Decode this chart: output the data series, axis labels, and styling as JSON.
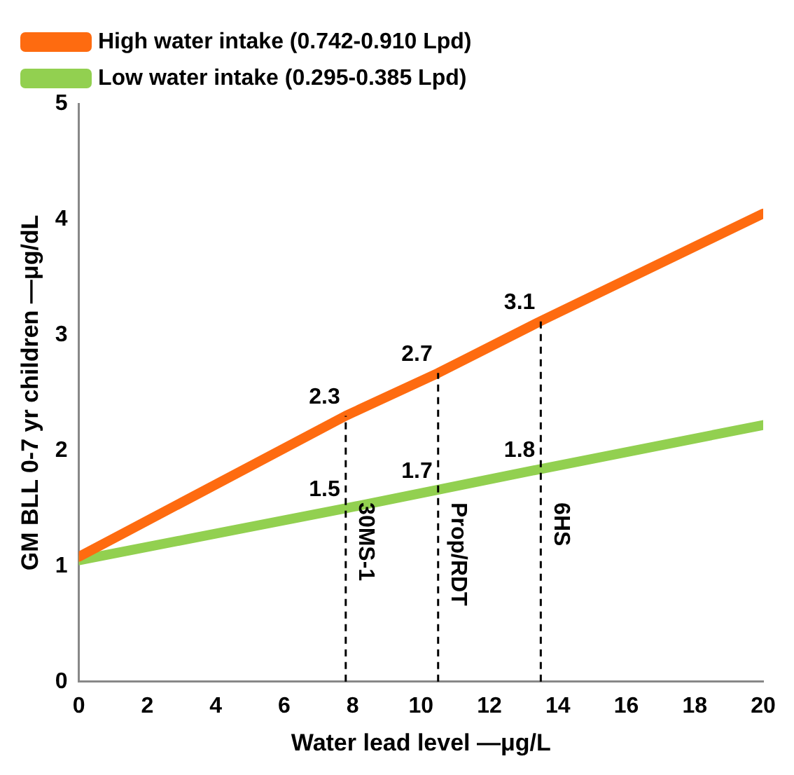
{
  "chart_data": {
    "type": "line",
    "xlabel": "Water lead level —μg/L",
    "ylabel": "GM BLL 0-7 yr children —μg/dL",
    "xlim": [
      0,
      20
    ],
    "xticks": [
      0,
      2,
      4,
      6,
      8,
      10,
      12,
      14,
      16,
      18,
      20
    ],
    "ylim": [
      0,
      5
    ],
    "yticks": [
      0,
      1,
      2,
      3,
      4,
      5
    ],
    "grid": false,
    "legend": "top left",
    "marker": "none",
    "series": [
      {
        "name": "High water intake (0.742-0.910 Lpd)",
        "color": "#fe6b10",
        "x": [
          0,
          7.8,
          10.5,
          13.5,
          20
        ],
        "values": [
          1.08,
          2.3,
          2.67,
          3.12,
          4.05
        ]
      },
      {
        "name": "Low water intake (0.295-0.385 Lpd)",
        "color": "#92d050",
        "x": [
          0,
          7.8,
          10.5,
          13.5,
          20
        ],
        "values": [
          1.05,
          1.5,
          1.66,
          1.84,
          2.22
        ]
      }
    ],
    "ref_lines": [
      {
        "axis": "x",
        "value": 7.8,
        "label": "30MS-1",
        "color": "#000000",
        "line_style": "dashed"
      },
      {
        "axis": "x",
        "value": 10.5,
        "label": "Prop/RDT",
        "color": "#000000",
        "line_style": "dashed"
      },
      {
        "axis": "x",
        "value": 13.5,
        "label": "6HS",
        "color": "#000000",
        "line_style": "dashed"
      }
    ],
    "annotations": [
      {
        "text": "2.3",
        "x": 7.8,
        "y": 2.3
      },
      {
        "text": "2.7",
        "x": 10.5,
        "y": 2.67
      },
      {
        "text": "3.1",
        "x": 13.5,
        "y": 3.12
      },
      {
        "text": "1.5",
        "x": 7.8,
        "y": 1.5
      },
      {
        "text": "1.7",
        "x": 10.5,
        "y": 1.66
      },
      {
        "text": "1.8",
        "x": 13.5,
        "y": 1.84
      }
    ]
  }
}
